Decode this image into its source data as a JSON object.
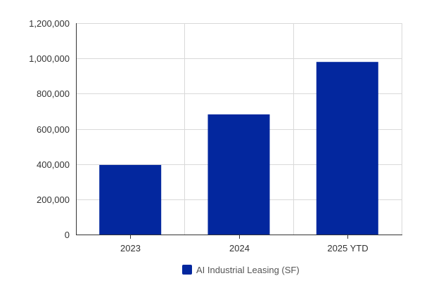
{
  "chart_data": {
    "type": "bar",
    "title": "",
    "xlabel": "",
    "ylabel": "",
    "categories": [
      "2023",
      "2024",
      "2025 YTD"
    ],
    "series": [
      {
        "name": "AI Industrial Leasing (SF)",
        "values": [
          395000,
          682000,
          980000
        ],
        "color": "#03279e"
      }
    ],
    "ylim": [
      0,
      1200000
    ],
    "yticks": [
      0,
      200000,
      400000,
      600000,
      800000,
      1000000,
      1200000
    ],
    "ytick_labels": [
      "0",
      "200,000",
      "400,000",
      "600,000",
      "800,000",
      "1,000,000",
      "1,200,000"
    ],
    "grid": true,
    "legend_position": "bottom-center"
  }
}
